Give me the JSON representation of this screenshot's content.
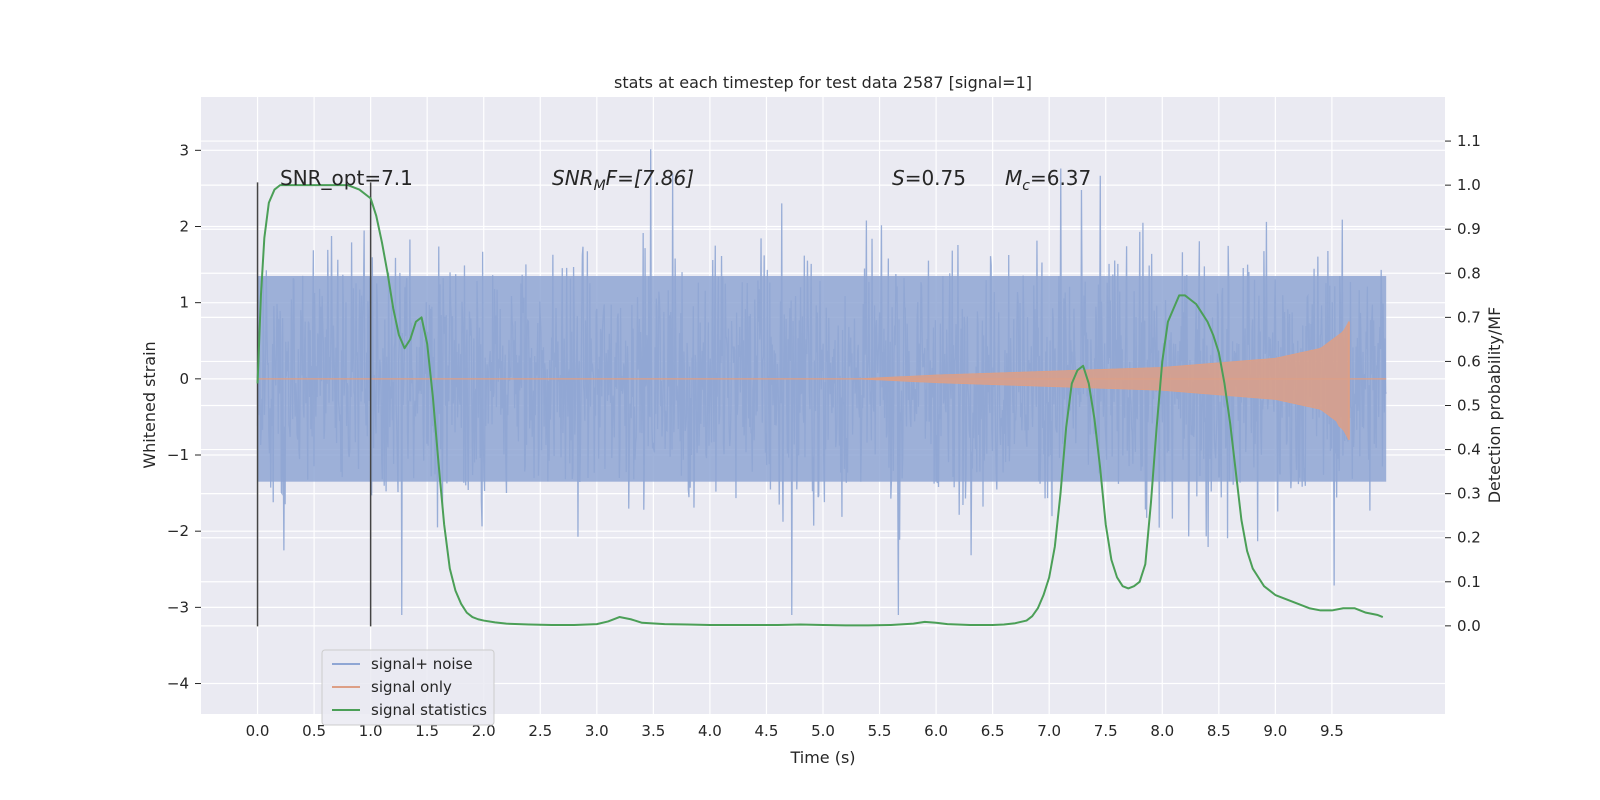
{
  "chart_data": {
    "type": "line",
    "title": "stats at each timestep for test data 2587 [signal=1]",
    "xlabel": "Time (s)",
    "ylabel": "Whitened strain",
    "y2label": "Detection probability/MF",
    "xlim": [
      -0.5,
      10.5
    ],
    "ylim": [
      -4.4,
      3.7
    ],
    "y2lim": [
      -0.2,
      1.2
    ],
    "xticks": [
      0.0,
      0.5,
      1.0,
      1.5,
      2.0,
      2.5,
      3.0,
      3.5,
      4.0,
      4.5,
      5.0,
      5.5,
      6.0,
      6.5,
      7.0,
      7.5,
      8.0,
      8.5,
      9.0,
      9.5
    ],
    "yticks": [
      3,
      2,
      1,
      0,
      -1,
      -2,
      -3,
      -4
    ],
    "y2ticks": [
      1.1,
      1.0,
      0.9,
      0.8,
      0.7,
      0.6,
      0.5,
      0.4,
      0.3,
      0.2,
      0.1,
      0.0
    ],
    "grid": true,
    "legend_placement": "lower-left",
    "annotations": {
      "snr_opt": "SNR_opt=7.1",
      "snr_mf_base": "SNR",
      "snr_mf_sub": "M",
      "snr_mf_rest": "F=[7.86]",
      "s_italic": "S",
      "s_rest": "=0.75",
      "mc_base": "M",
      "mc_sub": "c",
      "mc_rest": "=6.37"
    },
    "vlines": [
      0.0,
      1.0
    ],
    "vline_range": [
      -3.25,
      2.58
    ],
    "series": [
      {
        "name": "signal+ noise",
        "color": "#8fa6d4",
        "x_range": [
          0.0,
          9.98
        ],
        "envelope": "dense noise, typical amplitude about ±1.5, peaks to about ±3"
      },
      {
        "name": "signal only",
        "color": "#dd9f86",
        "chirp": {
          "start": 5.3,
          "end": 9.65,
          "amplitudes": [
            [
              5.3,
              0.0
            ],
            [
              6.0,
              0.05
            ],
            [
              7.0,
              0.1
            ],
            [
              8.0,
              0.15
            ],
            [
              9.0,
              0.27
            ],
            [
              9.4,
              0.4
            ],
            [
              9.6,
              0.62
            ],
            [
              9.65,
              0.75
            ]
          ],
          "negative_peak": -0.8
        }
      },
      {
        "name": "signal statistics",
        "color": "#4b9f57",
        "axis": "right",
        "x": [
          0.0,
          0.03,
          0.06,
          0.1,
          0.15,
          0.2,
          0.3,
          0.4,
          0.5,
          0.6,
          0.7,
          0.8,
          0.9,
          1.0,
          1.05,
          1.1,
          1.15,
          1.2,
          1.25,
          1.3,
          1.35,
          1.4,
          1.45,
          1.5,
          1.55,
          1.6,
          1.65,
          1.7,
          1.75,
          1.8,
          1.85,
          1.9,
          1.95,
          2.0,
          2.1,
          2.2,
          2.4,
          2.6,
          2.8,
          3.0,
          3.1,
          3.2,
          3.3,
          3.4,
          3.6,
          3.8,
          4.0,
          4.2,
          4.4,
          4.6,
          4.8,
          5.0,
          5.2,
          5.4,
          5.6,
          5.8,
          5.9,
          6.0,
          6.1,
          6.3,
          6.5,
          6.6,
          6.7,
          6.8,
          6.85,
          6.9,
          6.95,
          7.0,
          7.05,
          7.1,
          7.15,
          7.2,
          7.25,
          7.3,
          7.35,
          7.4,
          7.45,
          7.5,
          7.55,
          7.6,
          7.65,
          7.7,
          7.75,
          7.8,
          7.85,
          7.9,
          7.95,
          8.0,
          8.05,
          8.1,
          8.15,
          8.2,
          8.25,
          8.3,
          8.35,
          8.4,
          8.45,
          8.5,
          8.55,
          8.6,
          8.65,
          8.7,
          8.75,
          8.8,
          8.85,
          8.9,
          8.95,
          9.0,
          9.1,
          9.2,
          9.3,
          9.4,
          9.5,
          9.6,
          9.7,
          9.8,
          9.9,
          9.95
        ],
        "values": [
          0.55,
          0.75,
          0.88,
          0.96,
          0.99,
          1.0,
          1.0,
          1.0,
          1.0,
          1.0,
          1.0,
          1.0,
          0.99,
          0.97,
          0.93,
          0.87,
          0.8,
          0.72,
          0.66,
          0.63,
          0.65,
          0.69,
          0.7,
          0.64,
          0.52,
          0.37,
          0.23,
          0.13,
          0.08,
          0.05,
          0.03,
          0.02,
          0.015,
          0.012,
          0.008,
          0.005,
          0.003,
          0.002,
          0.002,
          0.004,
          0.01,
          0.02,
          0.015,
          0.007,
          0.004,
          0.003,
          0.002,
          0.002,
          0.002,
          0.002,
          0.003,
          0.002,
          0.001,
          0.001,
          0.002,
          0.005,
          0.009,
          0.007,
          0.004,
          0.002,
          0.002,
          0.003,
          0.006,
          0.012,
          0.022,
          0.04,
          0.07,
          0.11,
          0.18,
          0.3,
          0.45,
          0.55,
          0.58,
          0.59,
          0.55,
          0.47,
          0.36,
          0.23,
          0.15,
          0.11,
          0.09,
          0.085,
          0.09,
          0.1,
          0.14,
          0.28,
          0.45,
          0.6,
          0.69,
          0.72,
          0.75,
          0.75,
          0.74,
          0.73,
          0.71,
          0.69,
          0.66,
          0.62,
          0.55,
          0.46,
          0.35,
          0.24,
          0.17,
          0.13,
          0.11,
          0.09,
          0.08,
          0.07,
          0.06,
          0.05,
          0.04,
          0.035,
          0.035,
          0.04,
          0.04,
          0.03,
          0.025,
          0.02
        ]
      }
    ]
  }
}
